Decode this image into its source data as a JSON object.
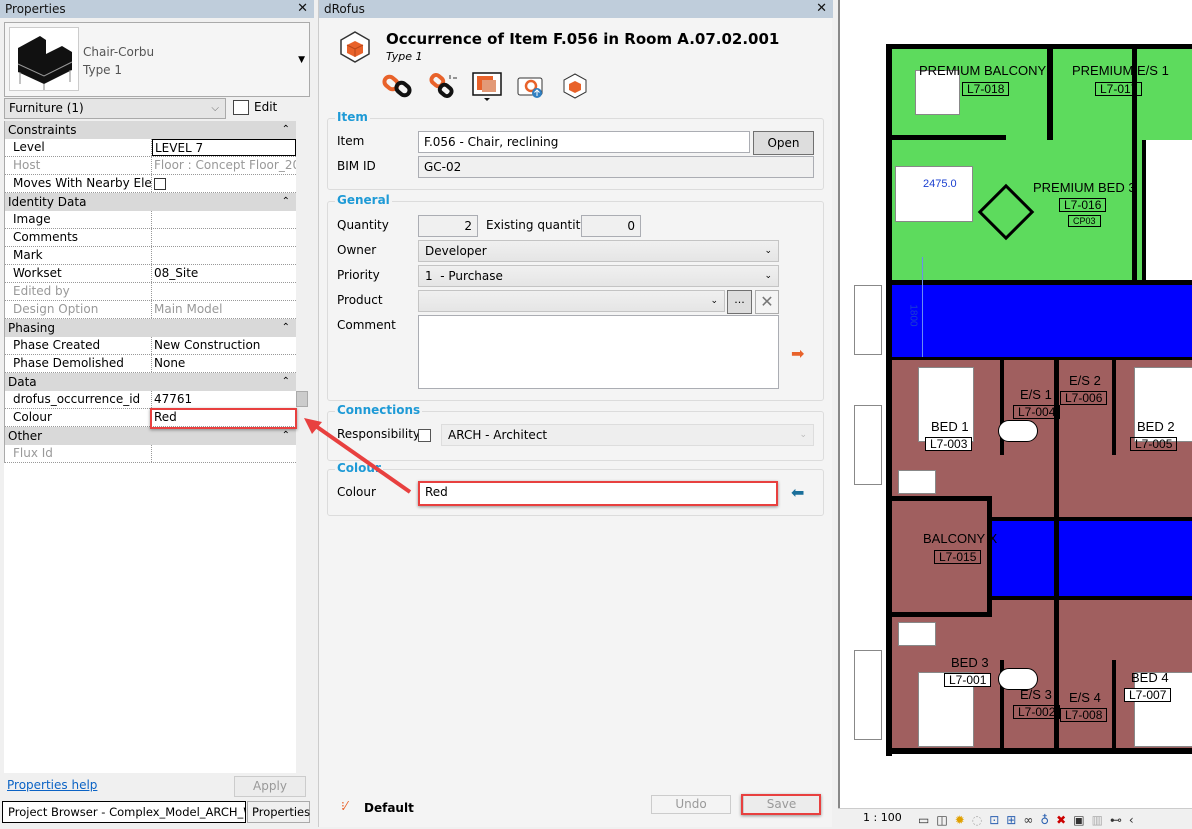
{
  "properties": {
    "title": "Properties",
    "type_family": "Chair-Corbu",
    "type_name": "Type 1",
    "category": "Furniture (1)",
    "edit_type": "Edit Type",
    "sections": {
      "constraints": "Constraints",
      "identity": "Identity Data",
      "phasing": "Phasing",
      "data": "Data",
      "other": "Other"
    },
    "rows": {
      "level": [
        "Level",
        "LEVEL 7"
      ],
      "host": [
        "Host",
        "Floor : Concept Floor_20..."
      ],
      "moves": [
        "Moves With Nearby Ele...",
        ""
      ],
      "image": [
        "Image",
        ""
      ],
      "comments": [
        "Comments",
        ""
      ],
      "mark": [
        "Mark",
        ""
      ],
      "workset": [
        "Workset",
        "08_Site"
      ],
      "edited_by": [
        "Edited by",
        ""
      ],
      "design_option": [
        "Design Option",
        "Main Model"
      ],
      "phase_created": [
        "Phase Created",
        "New Construction"
      ],
      "phase_demolished": [
        "Phase Demolished",
        "None"
      ],
      "drofus_id": [
        "drofus_occurrence_id",
        "47761"
      ],
      "colour": [
        "Colour",
        "Red"
      ],
      "flux_id": [
        "Flux Id",
        ""
      ]
    },
    "help_link": "Properties help",
    "apply": "Apply",
    "tabs": [
      "Project Browser - Complex_Model_ARCH_Wi...",
      "Properties"
    ]
  },
  "drofus": {
    "title": "dRofus",
    "heading": "Occurrence of Item F.056 in Room A.07.02.001",
    "subheading": "Type 1",
    "toolbar_icons": [
      "link-icon",
      "unlink-icon",
      "display-icon",
      "camera-upload-icon",
      "cube-icon"
    ],
    "item": {
      "group": "Item",
      "item_label": "Item",
      "item_value": "F.056 - Chair, reclining",
      "open_item": "Open Item",
      "bim_label": "BIM ID",
      "bim_value": "GC-02"
    },
    "general": {
      "group": "General",
      "quantity_label": "Quantity",
      "quantity": "2",
      "existing_label": "Existing quantity",
      "existing": "0",
      "owner_label": "Owner",
      "owner": "Developer",
      "priority_label": "Priority",
      "priority": "1  - Purchase",
      "product_label": "Product",
      "product": "",
      "browse": "...",
      "comment_label": "Comment",
      "comment": ""
    },
    "connections": {
      "group": "Connections",
      "responsibility_label": "Responsibility",
      "responsibility": "ARCH - Architect"
    },
    "colour": {
      "group": "Colour",
      "label": "Colour",
      "value": "Red"
    },
    "footer": {
      "profile": "Default",
      "undo": "Undo",
      "save": "Save"
    },
    "colors": {
      "accent": "#1e9ad6",
      "highlight": "#e8403f",
      "orange": "#e8622a"
    }
  },
  "floorplan": {
    "dimension": "2475.0",
    "dimension_v": "1800",
    "rooms": [
      {
        "name": "PREMIUM BALCONY",
        "number": "L7-018"
      },
      {
        "name": "PREMIUM E/S 1",
        "number": "L7-017"
      },
      {
        "name": "PREMIUM BED 3",
        "number": "L7-016"
      },
      {
        "name": "BED 1",
        "number": "L7-003"
      },
      {
        "name": "E/S 1",
        "number": "L7-004"
      },
      {
        "name": "E/S 2",
        "number": "L7-006"
      },
      {
        "name": "BED 2",
        "number": "L7-005"
      },
      {
        "name": "BALCONY X",
        "number": "L7-015"
      },
      {
        "name": "BED 3",
        "number": "L7-001"
      },
      {
        "name": "E/S 3",
        "number": "L7-002"
      },
      {
        "name": "E/S 4",
        "number": "L7-008"
      },
      {
        "name": "BED 4",
        "number": "L7-007"
      }
    ],
    "tag": "CP03",
    "colors": {
      "green": "#5ddb5d",
      "blue": "#0000ff",
      "brown": "#a05f5f"
    }
  },
  "status": {
    "scale": "1 : 100"
  }
}
